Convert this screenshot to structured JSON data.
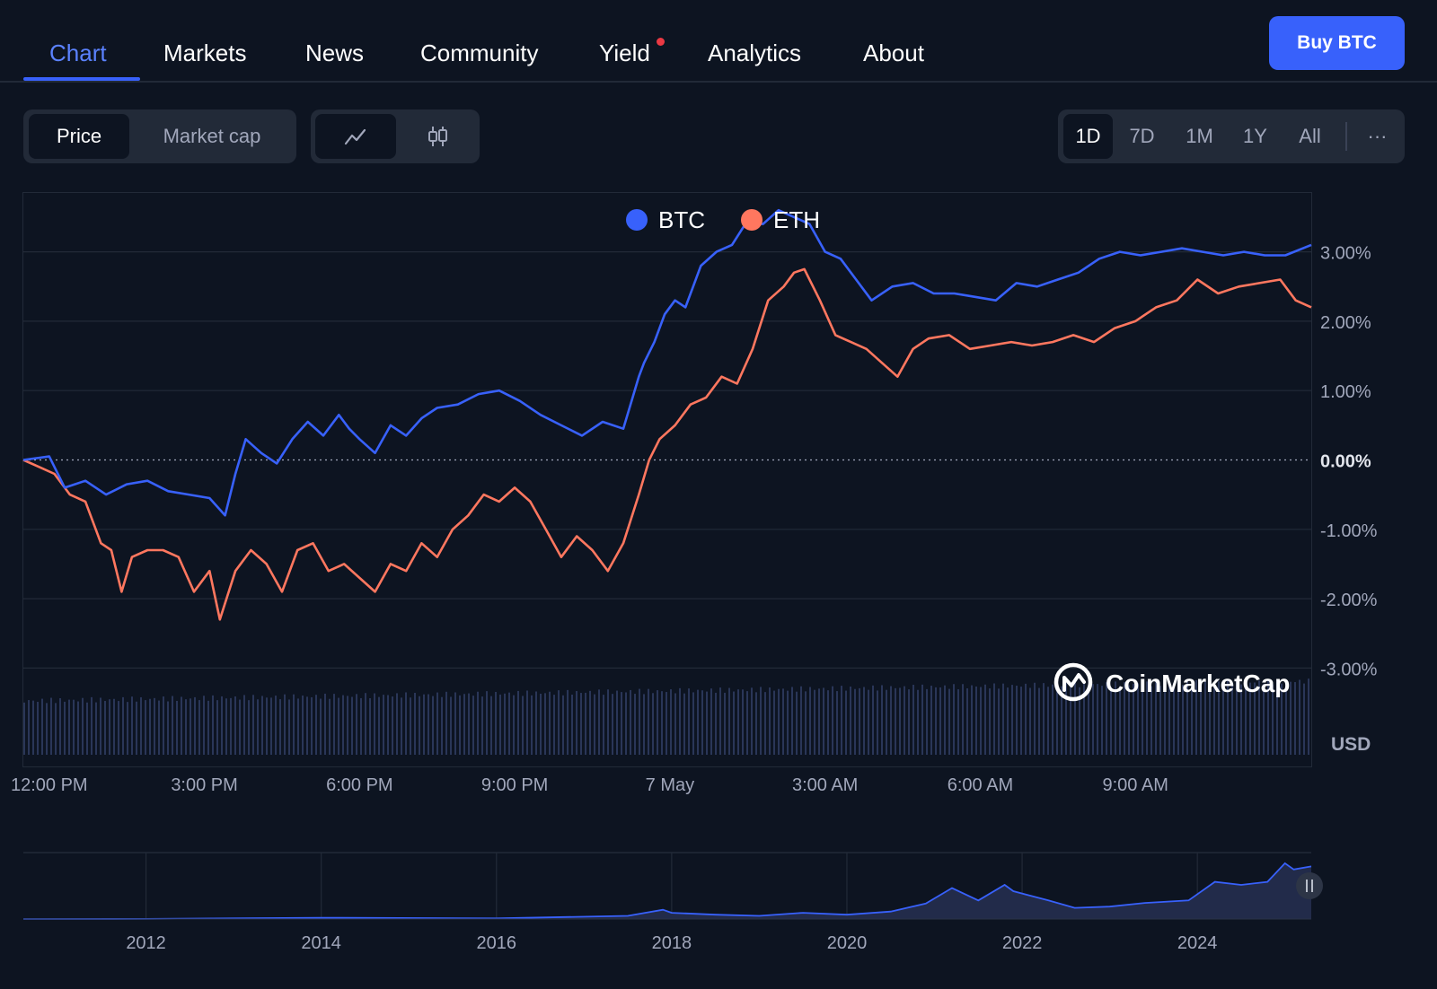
{
  "nav": {
    "tabs": [
      {
        "label": "Chart",
        "active": true
      },
      {
        "label": "Markets"
      },
      {
        "label": "News"
      },
      {
        "label": "Community"
      },
      {
        "label": "Yield",
        "badge": true
      },
      {
        "label": "Analytics"
      },
      {
        "label": "About"
      }
    ],
    "buy_label": "Buy BTC"
  },
  "toolbar": {
    "metric_options": [
      {
        "label": "Price",
        "active": true
      },
      {
        "label": "Market cap"
      }
    ],
    "chart_style_icons": [
      "line-chart-icon",
      "candlestick-icon"
    ],
    "ranges": [
      {
        "label": "1D",
        "active": true
      },
      {
        "label": "7D"
      },
      {
        "label": "1M"
      },
      {
        "label": "1Y"
      },
      {
        "label": "All"
      }
    ],
    "more_label": "···"
  },
  "watermark": "CoinMarketCap",
  "currency_label": "USD",
  "colors": {
    "btc": "#3861fb",
    "eth": "#ff775f",
    "background": "#0d1421",
    "grid": "#222a38",
    "accent": "#3861fb",
    "muted": "#a1a7bb"
  },
  "chart_data": [
    {
      "type": "line",
      "legend": [
        "BTC",
        "ETH"
      ],
      "ylim": [
        -3.3,
        3.9
      ],
      "y_ticks": [
        "3.00%",
        "2.00%",
        "1.00%",
        "0.00%",
        "-1.00%",
        "-2.00%",
        "-3.00%"
      ],
      "y_tick_values": [
        3,
        2,
        1,
        0,
        -1,
        -2,
        -3
      ],
      "x_ticks": [
        "12:00 PM",
        "3:00 PM",
        "6:00 PM",
        "9:00 PM",
        "7 May",
        "3:00 AM",
        "6:00 AM",
        "9:00 AM"
      ],
      "x_tick_hours": [
        0.5,
        3.5,
        6.5,
        9.5,
        12.5,
        15.5,
        18.5,
        21.5
      ],
      "xlim_hours": [
        0,
        24.9
      ],
      "series": [
        {
          "name": "BTC",
          "x": [
            0,
            0.5,
            0.8,
            1.2,
            1.6,
            2.0,
            2.4,
            2.8,
            3.2,
            3.6,
            3.9,
            4.1,
            4.3,
            4.6,
            4.9,
            5.2,
            5.5,
            5.8,
            6.1,
            6.3,
            6.5,
            6.8,
            7.1,
            7.4,
            7.7,
            8.0,
            8.4,
            8.8,
            9.2,
            9.6,
            10.0,
            10.4,
            10.8,
            11.2,
            11.6,
            11.9,
            12.0,
            12.2,
            12.4,
            12.6,
            12.8,
            13.1,
            13.4,
            13.7,
            14.0,
            14.3,
            14.6,
            14.9,
            15.2,
            15.5,
            15.8,
            16.1,
            16.4,
            16.8,
            17.2,
            17.6,
            18.0,
            18.4,
            18.8,
            19.2,
            19.6,
            20.0,
            20.4,
            20.8,
            21.2,
            21.6,
            22.0,
            22.4,
            22.8,
            23.2,
            23.6,
            24.0,
            24.4,
            24.9
          ],
          "values": [
            0.0,
            0.05,
            -0.4,
            -0.3,
            -0.5,
            -0.35,
            -0.3,
            -0.45,
            -0.5,
            -0.55,
            -0.8,
            -0.2,
            0.3,
            0.1,
            -0.05,
            0.3,
            0.55,
            0.35,
            0.65,
            0.45,
            0.3,
            0.1,
            0.5,
            0.35,
            0.6,
            0.75,
            0.8,
            0.95,
            1.0,
            0.85,
            0.65,
            0.5,
            0.35,
            0.55,
            0.45,
            1.2,
            1.4,
            1.7,
            2.1,
            2.3,
            2.2,
            2.8,
            3.0,
            3.1,
            3.45,
            3.4,
            3.6,
            3.5,
            3.4,
            3.0,
            2.9,
            2.6,
            2.3,
            2.5,
            2.55,
            2.4,
            2.4,
            2.35,
            2.3,
            2.55,
            2.5,
            2.6,
            2.7,
            2.9,
            3.0,
            2.95,
            3.0,
            3.05,
            3.0,
            2.95,
            3.0,
            2.95,
            2.95,
            3.1
          ]
        },
        {
          "name": "ETH",
          "x": [
            0,
            0.3,
            0.6,
            0.9,
            1.2,
            1.5,
            1.7,
            1.9,
            2.1,
            2.4,
            2.7,
            3.0,
            3.3,
            3.6,
            3.8,
            4.1,
            4.4,
            4.7,
            5.0,
            5.3,
            5.6,
            5.9,
            6.2,
            6.5,
            6.8,
            7.1,
            7.4,
            7.7,
            8.0,
            8.3,
            8.6,
            8.9,
            9.2,
            9.5,
            9.8,
            10.1,
            10.4,
            10.7,
            11.0,
            11.3,
            11.6,
            11.9,
            12.1,
            12.3,
            12.6,
            12.9,
            13.2,
            13.5,
            13.8,
            14.1,
            14.4,
            14.7,
            14.9,
            15.1,
            15.4,
            15.7,
            16.0,
            16.3,
            16.6,
            16.9,
            17.2,
            17.5,
            17.9,
            18.3,
            18.7,
            19.1,
            19.5,
            19.9,
            20.3,
            20.7,
            21.1,
            21.5,
            21.9,
            22.3,
            22.7,
            23.1,
            23.5,
            23.9,
            24.3,
            24.6,
            24.9
          ],
          "values": [
            0.0,
            -0.1,
            -0.2,
            -0.5,
            -0.6,
            -1.2,
            -1.3,
            -1.9,
            -1.4,
            -1.3,
            -1.3,
            -1.4,
            -1.9,
            -1.6,
            -2.3,
            -1.6,
            -1.3,
            -1.5,
            -1.9,
            -1.3,
            -1.2,
            -1.6,
            -1.5,
            -1.7,
            -1.9,
            -1.5,
            -1.6,
            -1.2,
            -1.4,
            -1.0,
            -0.8,
            -0.5,
            -0.6,
            -0.4,
            -0.6,
            -1.0,
            -1.4,
            -1.1,
            -1.3,
            -1.6,
            -1.2,
            -0.5,
            0.0,
            0.3,
            0.5,
            0.8,
            0.9,
            1.2,
            1.1,
            1.6,
            2.3,
            2.5,
            2.7,
            2.75,
            2.3,
            1.8,
            1.7,
            1.6,
            1.4,
            1.2,
            1.6,
            1.75,
            1.8,
            1.6,
            1.65,
            1.7,
            1.65,
            1.7,
            1.8,
            1.7,
            1.9,
            2.0,
            2.2,
            2.3,
            2.6,
            2.4,
            2.5,
            2.55,
            2.6,
            2.3,
            2.2
          ]
        }
      ]
    },
    {
      "type": "area",
      "x_ticks": [
        "2012",
        "2014",
        "2016",
        "2018",
        "2020",
        "2022",
        "2024"
      ],
      "x": [
        2010.6,
        2012,
        2014,
        2016,
        2017.5,
        2017.9,
        2018.0,
        2018.5,
        2019.0,
        2019.5,
        2020.0,
        2020.5,
        2020.9,
        2021.2,
        2021.5,
        2021.8,
        2021.9,
        2022.3,
        2022.6,
        2023.0,
        2023.4,
        2023.9,
        2024.2,
        2024.5,
        2024.8,
        2025.0,
        2025.1,
        2025.3
      ],
      "values": [
        0.0,
        0.002,
        0.02,
        0.01,
        0.05,
        0.15,
        0.1,
        0.07,
        0.05,
        0.1,
        0.07,
        0.12,
        0.25,
        0.5,
        0.3,
        0.55,
        0.45,
        0.3,
        0.18,
        0.2,
        0.26,
        0.3,
        0.6,
        0.55,
        0.6,
        0.9,
        0.8,
        0.85
      ],
      "ylim": [
        0,
        1
      ]
    }
  ]
}
